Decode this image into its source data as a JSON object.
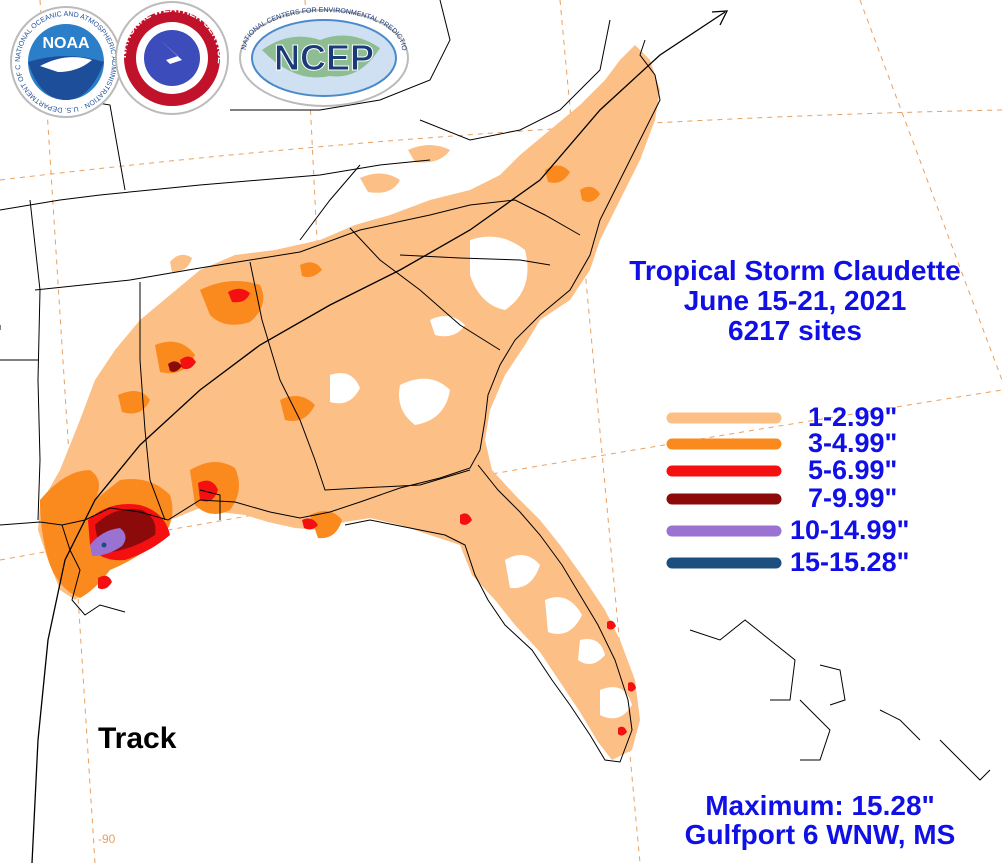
{
  "logos": {
    "noaa": "NOAA",
    "noaa_ring": "NATIONAL OCEANIC AND ATMOSPHERIC ADMINISTRATION · U.S. DEPARTMENT OF COMMERCE ·",
    "nws_ring": "NATIONAL WEATHER SERVICE",
    "ncep": "NCEP",
    "ncep_ring": "NATIONAL CENTERS FOR ENVIRONMENTAL PREDICTION"
  },
  "title": {
    "line1": "Tropical Storm Claudette",
    "line2": "June 15-21, 2021",
    "line3": "6217 sites"
  },
  "legend": [
    {
      "label": "1-2.99\"",
      "color": "#fcbf86"
    },
    {
      "label": "3-4.99\"",
      "color": "#fb8a1e"
    },
    {
      "label": "5-6.99\"",
      "color": "#f41010"
    },
    {
      "label": "7-9.99\"",
      "color": "#8c0a0a"
    },
    {
      "label": "10-14.99\"",
      "color": "#9a72d2"
    },
    {
      "label": "15-15.28\"",
      "color": "#1c4e80"
    }
  ],
  "maximum": {
    "line1": "Maximum:  15.28\"",
    "line2": "Gulfport 6 WNW, MS"
  },
  "track_label": "Track",
  "longitude_label": "-90",
  "colors": {
    "text_blue": "#1010e6",
    "light_orange": "#fcbf86",
    "orange": "#fb8a1e",
    "red": "#f41010",
    "dark_red": "#8c0a0a",
    "purple": "#9a72d2",
    "navy": "#1c4e80",
    "grid": "#e8a060"
  }
}
